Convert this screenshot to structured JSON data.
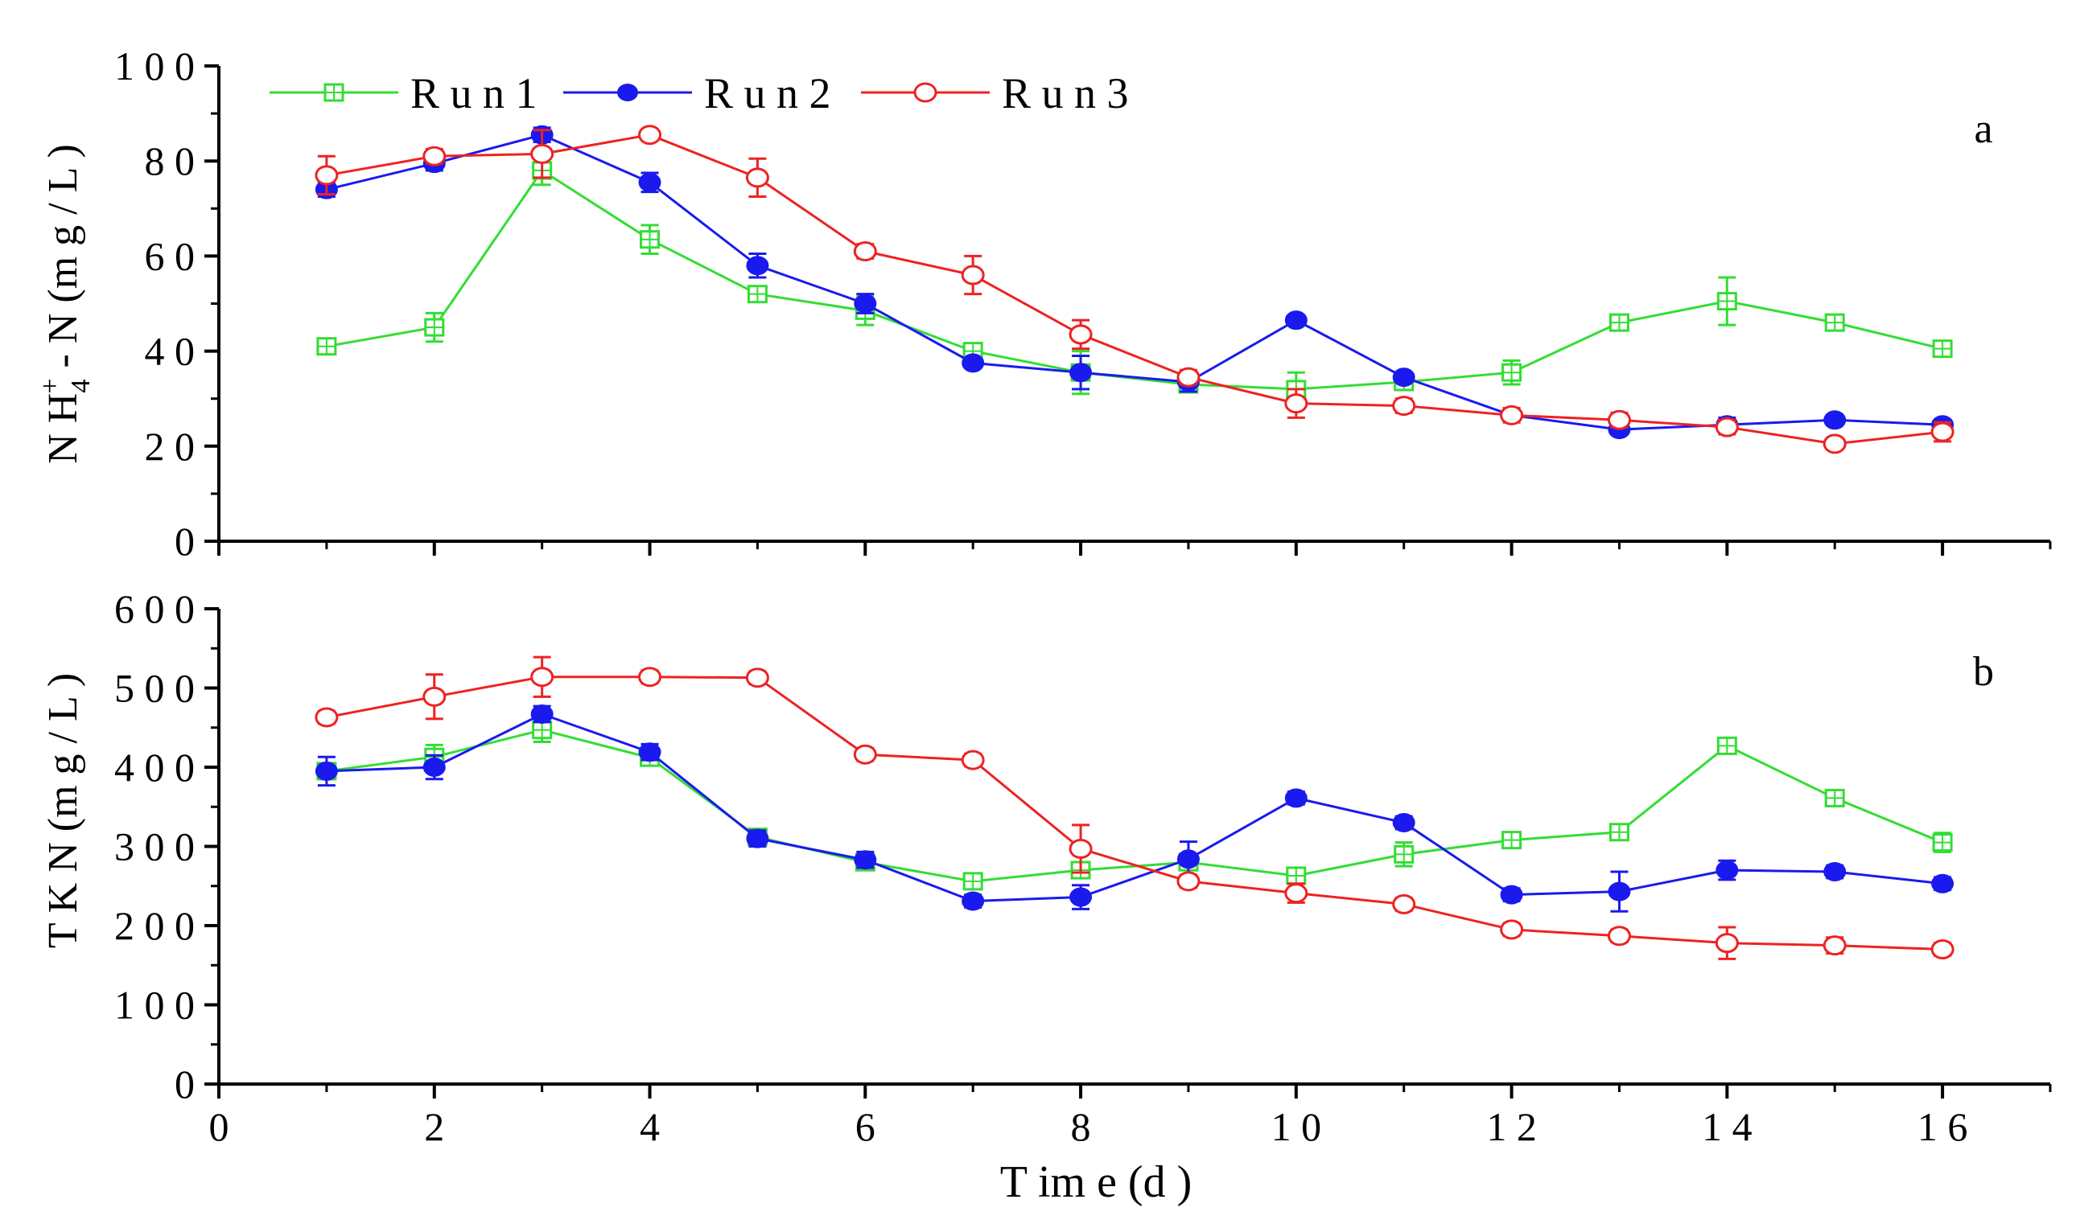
{
  "chart_data": [
    {
      "type": "line",
      "panel_label": "a",
      "title": "",
      "xlabel": "",
      "ylabel": "NH4+-N (mg/L)",
      "ylabel_main": "N H",
      "ylabel_sup": "+",
      "ylabel_sub": "4",
      "ylabel_tail": " - N  (m g / L )",
      "xlim": [
        0,
        17
      ],
      "ylim": [
        0,
        100
      ],
      "yticks": [
        "0",
        "2 0",
        "4 0",
        "6 0",
        "8 0",
        "1 0 0"
      ],
      "ytick_values": [
        0,
        20,
        40,
        60,
        80,
        100
      ],
      "x": [
        1,
        2,
        3,
        4,
        5,
        6,
        7,
        8,
        9,
        10,
        11,
        12,
        13,
        14,
        15,
        16
      ],
      "series": [
        {
          "name": "Run 1",
          "color": "#33dd33",
          "marker": "square",
          "values": [
            41,
            45,
            78,
            63.5,
            52,
            48.5,
            40,
            35.5,
            33,
            32,
            33.5,
            35.5,
            46,
            50.5,
            46,
            40.5
          ],
          "errors": [
            1.5,
            3,
            3,
            3,
            1.5,
            3,
            1.5,
            4.5,
            1.5,
            3.5,
            1.5,
            2.5,
            1.5,
            5,
            1.5,
            1.5
          ]
        },
        {
          "name": "Run 2",
          "color": "#1a1aee",
          "marker": "filled-circle",
          "values": [
            74,
            79.5,
            85.5,
            75.5,
            58,
            50,
            37.5,
            35.5,
            33.5,
            46.5,
            34.5,
            26.5,
            23.5,
            24.5,
            25.5,
            24.5
          ],
          "errors": [
            1.5,
            1.5,
            1.5,
            2,
            2.5,
            2,
            1,
            3.5,
            2,
            1,
            1,
            1,
            1,
            1.5,
            1,
            1
          ]
        },
        {
          "name": "Run 3",
          "color": "#ee2222",
          "marker": "open-circle",
          "values": [
            77,
            81,
            81.5,
            85.5,
            76.5,
            61,
            56,
            43.5,
            34.5,
            29,
            28.5,
            26.5,
            25.5,
            24,
            20.5,
            23
          ],
          "errors": [
            4,
            1.5,
            5,
            1,
            4,
            1.5,
            4,
            3,
            1.5,
            3,
            1.5,
            1.5,
            1.5,
            1.5,
            1,
            2
          ]
        }
      ]
    },
    {
      "type": "line",
      "panel_label": "b",
      "title": "",
      "xlabel": "T im e (d )",
      "ylabel": "T K N  (m g / L )",
      "xlim": [
        0,
        17
      ],
      "ylim": [
        0,
        600
      ],
      "yticks": [
        "0",
        "1 0 0",
        "2 0 0",
        "3 0 0",
        "4 0 0",
        "5 0 0",
        "6 0 0"
      ],
      "ytick_values": [
        0,
        100,
        200,
        300,
        400,
        500,
        600
      ],
      "xticks": [
        "0",
        "2",
        "4",
        "6",
        "8",
        "1 0",
        "1 2",
        "1 4",
        "1 6"
      ],
      "xtick_values": [
        0,
        2,
        4,
        6,
        8,
        10,
        12,
        14,
        16
      ],
      "x": [
        1,
        2,
        3,
        4,
        5,
        6,
        7,
        8,
        9,
        10,
        11,
        12,
        13,
        14,
        15,
        16
      ],
      "series": [
        {
          "name": "Run 1",
          "color": "#33dd33",
          "marker": "square",
          "values": [
            395,
            413,
            447,
            412,
            312,
            280,
            256,
            270,
            280,
            263,
            290,
            308,
            318,
            427,
            361,
            305
          ],
          "errors": [
            10,
            15,
            15,
            10,
            10,
            10,
            8,
            10,
            10,
            10,
            15,
            8,
            8,
            10,
            10,
            12
          ]
        },
        {
          "name": "Run 2",
          "color": "#1a1aee",
          "marker": "filled-circle",
          "values": [
            395,
            400,
            467,
            419,
            310,
            283,
            231,
            236,
            284,
            361,
            330,
            239,
            243,
            270,
            268,
            253
          ],
          "errors": [
            18,
            15,
            10,
            10,
            10,
            10,
            8,
            15,
            22,
            8,
            8,
            8,
            25,
            12,
            8,
            8
          ]
        },
        {
          "name": "Run 3",
          "color": "#ee2222",
          "marker": "open-circle",
          "values": [
            463,
            489,
            514,
            514,
            513,
            416,
            409,
            297,
            256,
            241,
            227,
            195,
            187,
            178,
            175,
            170
          ],
          "errors": [
            8,
            28,
            25,
            8,
            8,
            8,
            8,
            30,
            8,
            12,
            8,
            8,
            8,
            20,
            10,
            8
          ]
        }
      ]
    }
  ],
  "legend": {
    "placement": "top-left",
    "entries": [
      {
        "label": "R u n  1",
        "color": "#33dd33",
        "marker": "square"
      },
      {
        "label": "R u n  2",
        "color": "#1a1aee",
        "marker": "filled-circle"
      },
      {
        "label": "R u n  3",
        "color": "#ee2222",
        "marker": "open-circle"
      }
    ]
  }
}
